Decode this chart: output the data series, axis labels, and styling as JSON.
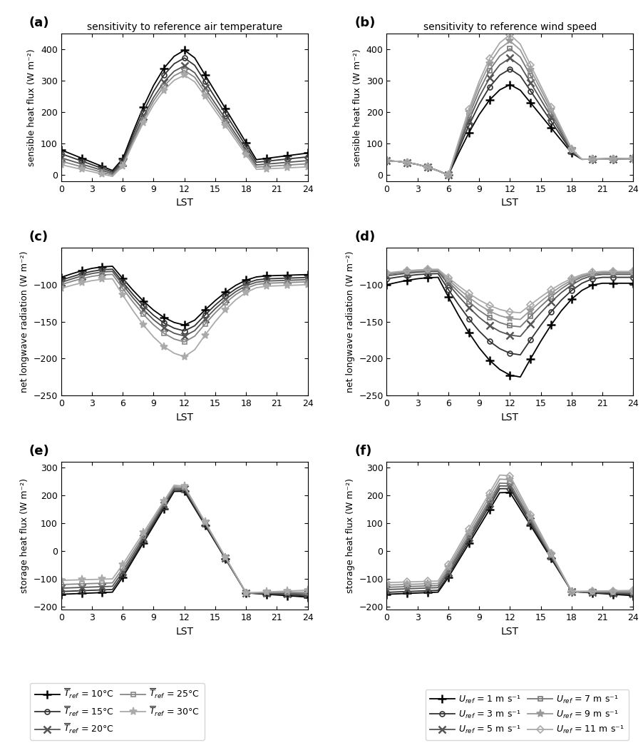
{
  "title_left": "sensitivity to reference air temperature",
  "title_right": "sensitivity to reference wind speed",
  "xlabel": "LST",
  "ylabel_a": "sensible heat flux (W m⁻²)",
  "ylabel_c": "net longwave radiation (W m⁻²)",
  "ylabel_e": "storage heat flux (W m⁻²)",
  "panel_labels": [
    "(a)",
    "(b)",
    "(c)",
    "(d)",
    "(e)",
    "(f)"
  ],
  "xticks": [
    0,
    3,
    6,
    9,
    12,
    15,
    18,
    21,
    24
  ],
  "temp_labels": [
    "$\\overline{T}_{ref}$ = 10°C",
    "$\\overline{T}_{ref}$ = 15°C",
    "$\\overline{T}_{ref}$ = 20°C",
    "$\\overline{T}_{ref}$ = 25°C",
    "$\\overline{T}_{ref}$ = 30°C"
  ],
  "wind_labels": [
    "$U_{ref}$ = 1 m s⁻¹",
    "$U_{ref}$ = 3 m s⁻¹",
    "$U_{ref}$ = 5 m s⁻¹",
    "$U_{ref}$ = 7 m s⁻¹",
    "$U_{ref}$ = 9 m s⁻¹",
    "$U_{ref}$ = 11 m s⁻¹"
  ],
  "temp_colors": [
    "#000000",
    "#333333",
    "#555555",
    "#888888",
    "#aaaaaa"
  ],
  "wind_colors": [
    "#000000",
    "#333333",
    "#555555",
    "#777777",
    "#999999",
    "#aaaaaa"
  ],
  "temp_markers": [
    "+",
    "o",
    "x",
    "s",
    "*"
  ],
  "wind_markers": [
    "+",
    "o",
    "x",
    "s",
    "*",
    "D"
  ],
  "temp_mss": [
    8,
    5,
    7,
    5,
    8
  ],
  "wind_mss": [
    8,
    5,
    7,
    5,
    8,
    5
  ],
  "temp_mews": [
    1.8,
    1.2,
    1.8,
    1.2,
    1.2
  ],
  "wind_mews": [
    1.8,
    1.2,
    1.8,
    1.2,
    1.2,
    1.2
  ],
  "a_ylim": [
    -20,
    450
  ],
  "a_yticks": [
    0,
    100,
    200,
    300,
    400
  ],
  "c_ylim": [
    -250,
    -50
  ],
  "c_yticks": [
    -250,
    -200,
    -150,
    -100
  ],
  "e_ylim": [
    -210,
    320
  ],
  "e_yticks": [
    -200,
    -100,
    0,
    100,
    200,
    300
  ]
}
